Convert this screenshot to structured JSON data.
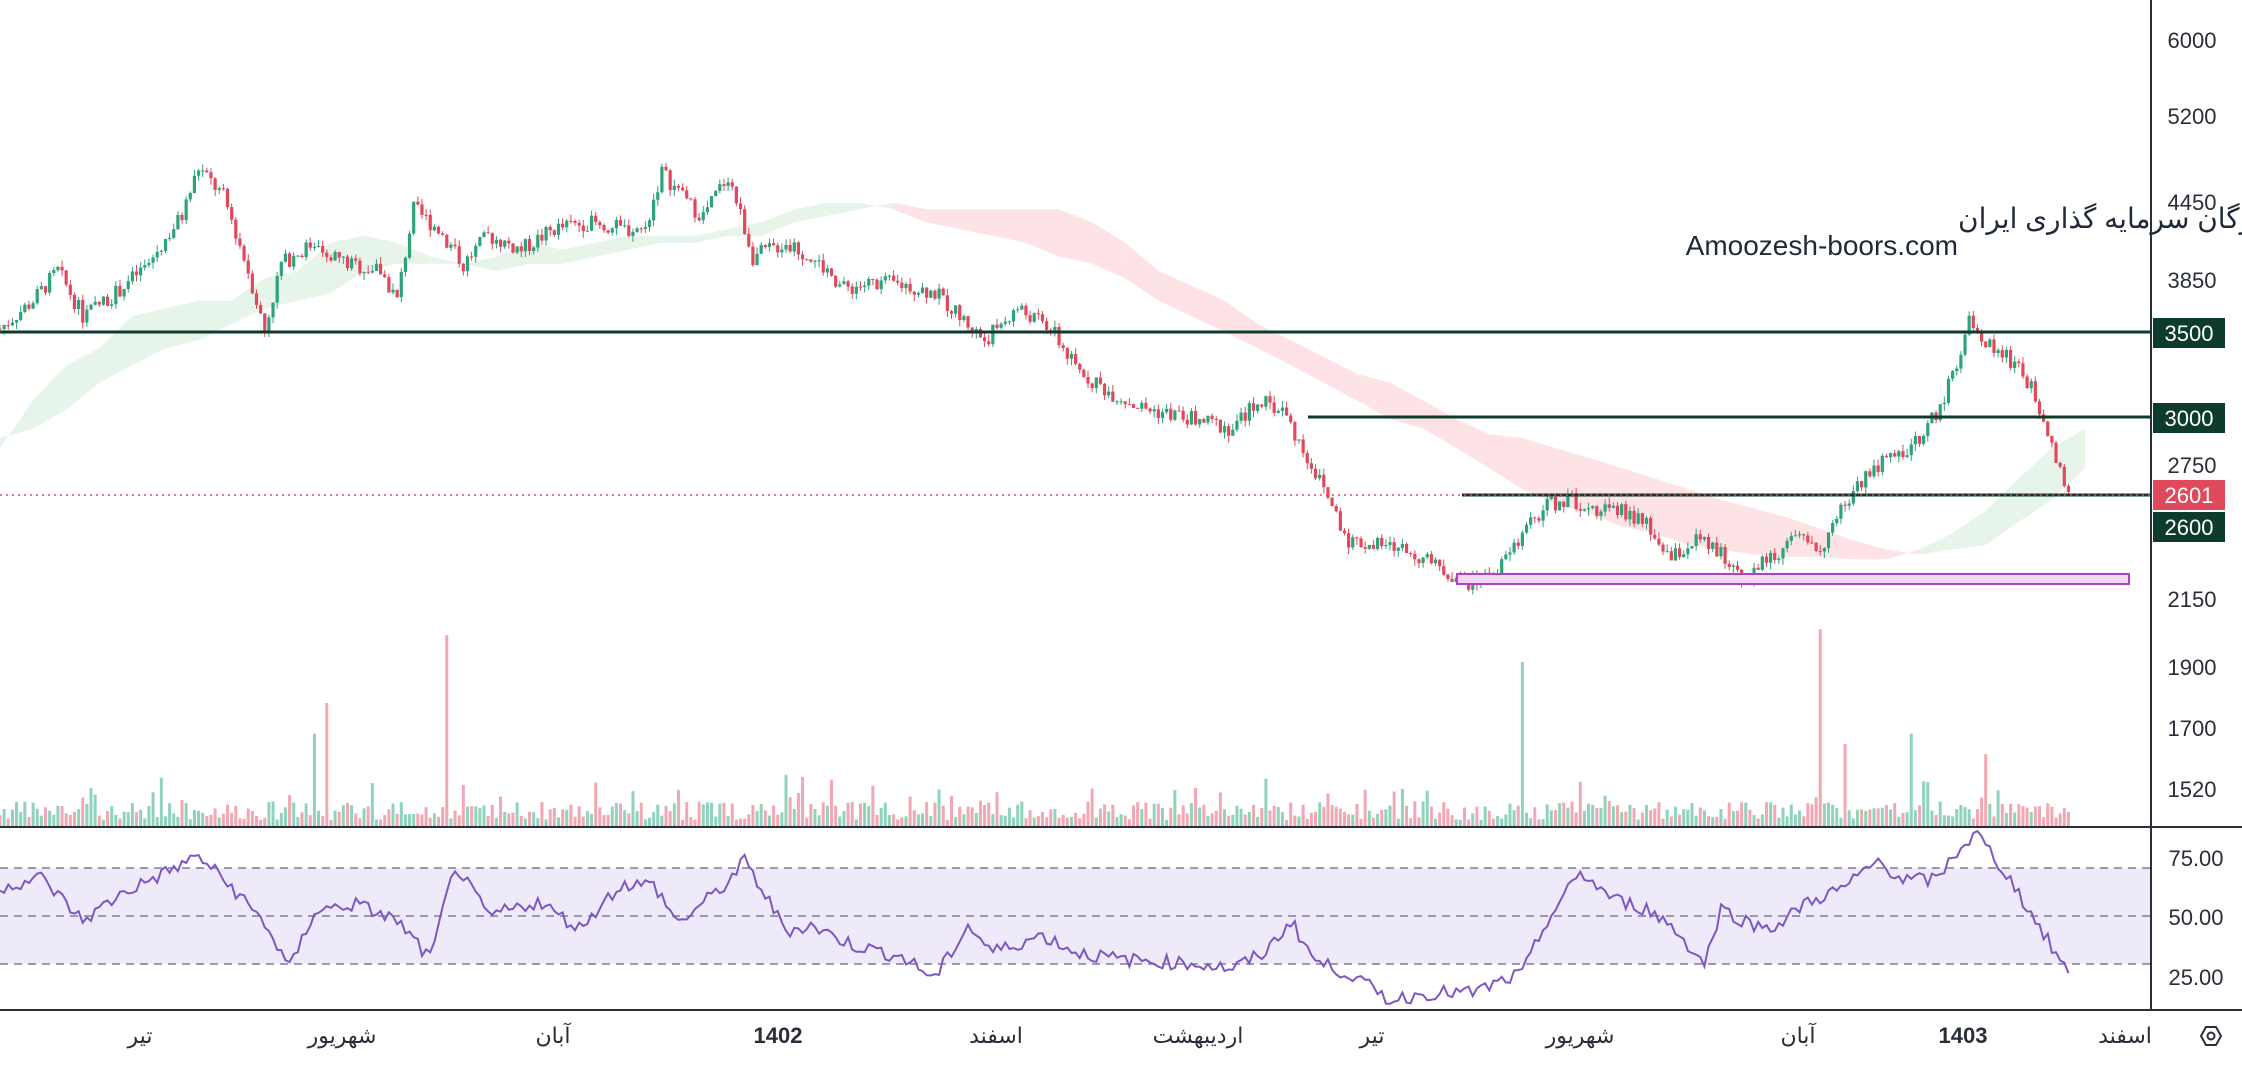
{
  "colors": {
    "up": "#2ea37a",
    "down": "#e0495b",
    "up_volume": "#8fd3bd",
    "down_volume": "#f2a8b3",
    "rsi_line": "#7e57c2",
    "rsi_band": "#efeafa",
    "cloud_bull": "#e7f4ea",
    "cloud_bear": "#fde3e5",
    "level_line": "#0d3b2e",
    "last_price": "#e0495b",
    "range_box": "#b13fc8",
    "axis_text": "#2a2e39",
    "divider": "#2a2e39"
  },
  "watermark": {
    "line1": "انجمن خبرگان سرمایه گذاری ایران",
    "line2": "Amoozesh-boors.com"
  },
  "price_axis": {
    "ticks": [
      "6000",
      "5200",
      "4450",
      "3850",
      "3500",
      "3000",
      "2750",
      "2150",
      "1900",
      "1700",
      "1520"
    ]
  },
  "rsi_axis": {
    "ticks": [
      "75.00",
      "50.00",
      "25.00"
    ]
  },
  "time_axis": {
    "labels": [
      "تیر",
      "شهریور",
      "آبان",
      "1402",
      "اسفند",
      "اردیبهشت",
      "تیر",
      "شهریور",
      "آبان",
      "1403",
      "اسفند"
    ],
    "bold": [
      "1402",
      "1403"
    ]
  },
  "badges": {
    "level_3500": "3500",
    "level_3000": "3000",
    "last_price": "2601",
    "level_2600": "2600"
  },
  "settings_icon": "hexagon-settings-icon",
  "chart_data": {
    "type": "candlestick",
    "symbol_watermark": "Amoozesh-boors.com",
    "y_axis_scale": "log",
    "ylim": [
      1450,
      6300
    ],
    "last_price": 2601,
    "horizontal_levels": [
      3500,
      3000,
      2600
    ],
    "support_zone": [
      2210,
      2270
    ],
    "price_path": [
      [
        0,
        3520
      ],
      [
        8,
        3700
      ],
      [
        14,
        3900
      ],
      [
        20,
        3600
      ],
      [
        28,
        3750
      ],
      [
        36,
        3950
      ],
      [
        44,
        4300
      ],
      [
        48,
        4680
      ],
      [
        54,
        4450
      ],
      [
        60,
        3900
      ],
      [
        64,
        3500
      ],
      [
        68,
        3950
      ],
      [
        76,
        4100
      ],
      [
        84,
        3950
      ],
      [
        92,
        3900
      ],
      [
        96,
        3700
      ],
      [
        100,
        4350
      ],
      [
        106,
        4200
      ],
      [
        112,
        3950
      ],
      [
        118,
        4150
      ],
      [
        126,
        4050
      ],
      [
        134,
        4200
      ],
      [
        142,
        4250
      ],
      [
        150,
        4200
      ],
      [
        156,
        4200
      ],
      [
        160,
        4650
      ],
      [
        166,
        4400
      ],
      [
        170,
        4300
      ],
      [
        176,
        4620
      ],
      [
        182,
        4000
      ],
      [
        190,
        4100
      ],
      [
        198,
        3950
      ],
      [
        204,
        3780
      ],
      [
        212,
        3820
      ],
      [
        220,
        3800
      ],
      [
        226,
        3750
      ],
      [
        232,
        3600
      ],
      [
        238,
        3450
      ],
      [
        246,
        3650
      ],
      [
        254,
        3520
      ],
      [
        260,
        3280
      ],
      [
        268,
        3150
      ],
      [
        276,
        3060
      ],
      [
        284,
        3020
      ],
      [
        292,
        2980
      ],
      [
        298,
        2950
      ],
      [
        304,
        3100
      ],
      [
        310,
        3050
      ],
      [
        314,
        2880
      ],
      [
        320,
        2650
      ],
      [
        326,
        2420
      ],
      [
        332,
        2400
      ],
      [
        340,
        2380
      ],
      [
        348,
        2300
      ],
      [
        356,
        2240
      ],
      [
        362,
        2290
      ],
      [
        368,
        2440
      ],
      [
        374,
        2580
      ],
      [
        380,
        2600
      ],
      [
        386,
        2560
      ],
      [
        392,
        2550
      ],
      [
        398,
        2480
      ],
      [
        404,
        2340
      ],
      [
        410,
        2420
      ],
      [
        416,
        2360
      ],
      [
        422,
        2260
      ],
      [
        428,
        2350
      ],
      [
        434,
        2420
      ],
      [
        440,
        2380
      ],
      [
        446,
        2580
      ],
      [
        452,
        2750
      ],
      [
        458,
        2800
      ],
      [
        464,
        2900
      ],
      [
        470,
        3100
      ],
      [
        476,
        3560
      ],
      [
        482,
        3400
      ],
      [
        488,
        3300
      ],
      [
        494,
        3020
      ],
      [
        500,
        2600
      ]
    ],
    "volume_spikes": [
      [
        76,
        0.45
      ],
      [
        79,
        0.6
      ],
      [
        108,
        0.93
      ],
      [
        112,
        0.2
      ],
      [
        190,
        0.25
      ],
      [
        194,
        0.24
      ],
      [
        368,
        0.8
      ],
      [
        440,
        0.96
      ],
      [
        446,
        0.4
      ],
      [
        462,
        0.45
      ],
      [
        480,
        0.35
      ]
    ],
    "rsi_path": [
      [
        0,
        62
      ],
      [
        10,
        66
      ],
      [
        20,
        48
      ],
      [
        30,
        60
      ],
      [
        40,
        68
      ],
      [
        48,
        75
      ],
      [
        56,
        62
      ],
      [
        64,
        47
      ],
      [
        70,
        28
      ],
      [
        76,
        52
      ],
      [
        86,
        55
      ],
      [
        96,
        48
      ],
      [
        104,
        32
      ],
      [
        110,
        71
      ],
      [
        118,
        50
      ],
      [
        130,
        56
      ],
      [
        140,
        45
      ],
      [
        150,
        63
      ],
      [
        158,
        63
      ],
      [
        164,
        47
      ],
      [
        176,
        64
      ],
      [
        180,
        73
      ],
      [
        190,
        44
      ],
      [
        196,
        46
      ],
      [
        206,
        38
      ],
      [
        218,
        33
      ],
      [
        226,
        24
      ],
      [
        234,
        46
      ],
      [
        240,
        35
      ],
      [
        252,
        42
      ],
      [
        260,
        35
      ],
      [
        270,
        32
      ],
      [
        280,
        31
      ],
      [
        290,
        30
      ],
      [
        298,
        28
      ],
      [
        306,
        35
      ],
      [
        312,
        48
      ],
      [
        318,
        31
      ],
      [
        326,
        26
      ],
      [
        336,
        15
      ],
      [
        346,
        18
      ],
      [
        356,
        18
      ],
      [
        362,
        22
      ],
      [
        368,
        26
      ],
      [
        374,
        48
      ],
      [
        382,
        68
      ],
      [
        390,
        57
      ],
      [
        398,
        53
      ],
      [
        404,
        46
      ],
      [
        412,
        30
      ],
      [
        416,
        53
      ],
      [
        424,
        46
      ],
      [
        430,
        46
      ],
      [
        436,
        55
      ],
      [
        446,
        62
      ],
      [
        454,
        73
      ],
      [
        460,
        65
      ],
      [
        468,
        65
      ],
      [
        474,
        79
      ],
      [
        478,
        84
      ],
      [
        486,
        65
      ],
      [
        492,
        48
      ],
      [
        500,
        26
      ]
    ],
    "rsi_levels": [
      70,
      50,
      30
    ],
    "rsi_ylim": [
      10,
      88
    ],
    "cloud": [
      [
        0,
        2850,
        2900
      ],
      [
        8,
        3100,
        2950
      ],
      [
        16,
        3300,
        3050
      ],
      [
        24,
        3400,
        3200
      ],
      [
        32,
        3600,
        3300
      ],
      [
        40,
        3650,
        3400
      ],
      [
        48,
        3700,
        3450
      ],
      [
        56,
        3700,
        3550
      ],
      [
        64,
        3850,
        3650
      ],
      [
        72,
        3900,
        3700
      ],
      [
        80,
        4100,
        3750
      ],
      [
        88,
        4150,
        3900
      ],
      [
        96,
        4100,
        3950
      ],
      [
        104,
        4000,
        3950
      ],
      [
        112,
        3950,
        3950
      ],
      [
        120,
        4000,
        3900
      ],
      [
        128,
        4100,
        3950
      ],
      [
        136,
        4050,
        3950
      ],
      [
        144,
        4100,
        4000
      ],
      [
        152,
        4150,
        4050
      ],
      [
        160,
        4150,
        4100
      ],
      [
        168,
        4150,
        4100
      ],
      [
        176,
        4200,
        4150
      ],
      [
        184,
        4250,
        4150
      ],
      [
        192,
        4350,
        4250
      ],
      [
        200,
        4400,
        4300
      ],
      [
        208,
        4400,
        4350
      ],
      [
        216,
        4350,
        4400
      ],
      [
        224,
        4250,
        4350
      ],
      [
        232,
        4200,
        4350
      ],
      [
        240,
        4150,
        4350
      ],
      [
        248,
        4100,
        4350
      ],
      [
        256,
        4000,
        4350
      ],
      [
        264,
        3950,
        4250
      ],
      [
        272,
        3850,
        4100
      ],
      [
        280,
        3700,
        3900
      ],
      [
        288,
        3600,
        3800
      ],
      [
        296,
        3500,
        3700
      ],
      [
        304,
        3400,
        3550
      ],
      [
        312,
        3300,
        3450
      ],
      [
        320,
        3200,
        3350
      ],
      [
        328,
        3100,
        3250
      ],
      [
        336,
        3000,
        3200
      ],
      [
        344,
        2950,
        3100
      ],
      [
        352,
        2850,
        3000
      ],
      [
        360,
        2750,
        2920
      ],
      [
        368,
        2650,
        2900
      ],
      [
        376,
        2580,
        2850
      ],
      [
        384,
        2540,
        2800
      ],
      [
        392,
        2480,
        2750
      ],
      [
        400,
        2450,
        2700
      ],
      [
        408,
        2400,
        2650
      ],
      [
        416,
        2380,
        2600
      ],
      [
        424,
        2360,
        2560
      ],
      [
        432,
        2350,
        2520
      ],
      [
        440,
        2350,
        2470
      ],
      [
        448,
        2340,
        2420
      ],
      [
        456,
        2340,
        2380
      ],
      [
        464,
        2380,
        2360
      ],
      [
        472,
        2450,
        2380
      ],
      [
        480,
        2550,
        2400
      ],
      [
        488,
        2700,
        2500
      ],
      [
        496,
        2850,
        2600
      ],
      [
        504,
        2950,
        2750
      ]
    ]
  }
}
